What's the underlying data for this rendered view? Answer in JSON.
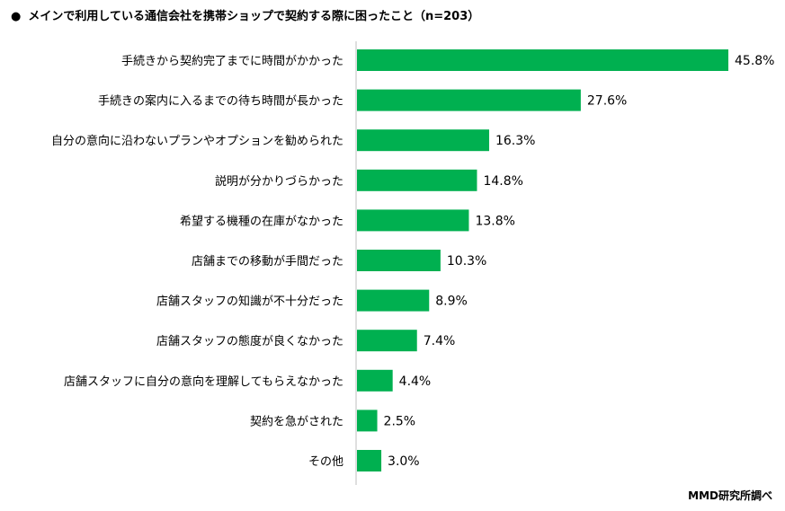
{
  "title": "メインで利用している通信会社を携帯ショップで契約する際に困ったこと（n=203）",
  "title_bullet": "●",
  "credit": "MMD研究所調べ",
  "colors": {
    "bar": "#00b050",
    "axis": "#bfbfbf",
    "text": "#000000"
  },
  "chart_data": {
    "type": "bar",
    "orientation": "horizontal",
    "title": "メインで利用している通信会社を携帯ショップで契約する際に困ったこと（n=203）",
    "categories": [
      "手続きから契約完了までに時間がかかった",
      "手続きの案内に入るまでの待ち時間が長かった",
      "自分の意向に沿わないプランやオプションを勧められた",
      "説明が分かりづらかった",
      "希望する機種の在庫がなかった",
      "店舗までの移動が手間だった",
      "店舗スタッフの知識が不十分だった",
      "店舗スタッフの態度が良くなかった",
      "店舗スタッフに自分の意向を理解してもらえなかった",
      "契約を急がされた",
      "その他"
    ],
    "values": [
      45.8,
      27.6,
      16.3,
      14.8,
      13.8,
      10.3,
      8.9,
      7.4,
      4.4,
      2.5,
      3.0
    ],
    "value_labels": [
      "45.8%",
      "27.6%",
      "16.3%",
      "14.8%",
      "13.8%",
      "10.3%",
      "8.9%",
      "7.4%",
      "4.4%",
      "2.5%",
      "3.0%"
    ],
    "unit": "%",
    "xlim": [
      0,
      50
    ],
    "grid": false,
    "legend": "none"
  }
}
